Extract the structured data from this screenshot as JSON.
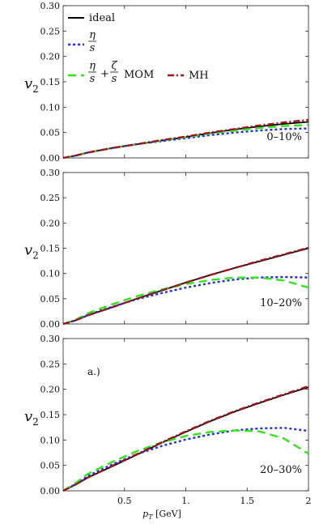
{
  "chart_data": {
    "type": "line",
    "xlabel_main": "p",
    "xlabel_sub": "T",
    "xlabel_unit": " [GeV]",
    "xlim": [
      0,
      2
    ],
    "x_ticks": [
      0.5,
      1.0,
      1.5,
      2.0
    ],
    "x_tick_labels": [
      "0.5",
      "1.",
      "1.5",
      "2"
    ],
    "ylabel_main": "v",
    "ylabel_sub": "2",
    "ylim": [
      0,
      0.3
    ],
    "y_ticks": [
      0.0,
      0.05,
      0.1,
      0.15,
      0.2,
      0.25,
      0.3
    ],
    "y_tick_labels": [
      "0.00",
      "0.05",
      "0.10",
      "0.15",
      "0.20",
      "0.25",
      "0.30"
    ],
    "legend": {
      "ideal": "ideal",
      "eta_num": "η",
      "s_den": "s",
      "plus": "+",
      "zeta_num": "ζ",
      "mom": "MOM",
      "mh": "MH"
    },
    "series_colors": {
      "ideal": "#000000",
      "eta_s": "#1f2ee8",
      "mom": "#33e51c",
      "mh": "#a0141c"
    },
    "panels": [
      {
        "label": "0–10%",
        "annotation": "",
        "series": {
          "ideal": [
            [
              0,
              0
            ],
            [
              0.1,
              0.0045
            ],
            [
              0.2,
              0.0105
            ],
            [
              0.4,
              0.0195
            ],
            [
              0.6,
              0.027
            ],
            [
              0.8,
              0.034
            ],
            [
              1.0,
              0.041
            ],
            [
              1.2,
              0.049
            ],
            [
              1.4,
              0.056
            ],
            [
              1.6,
              0.062
            ],
            [
              1.8,
              0.067
            ],
            [
              2.0,
              0.071
            ]
          ],
          "eta_s": [
            [
              0,
              0
            ],
            [
              0.1,
              0.0045
            ],
            [
              0.2,
              0.0105
            ],
            [
              0.4,
              0.0195
            ],
            [
              0.6,
              0.027
            ],
            [
              0.8,
              0.033
            ],
            [
              1.0,
              0.039
            ],
            [
              1.2,
              0.045
            ],
            [
              1.4,
              0.05
            ],
            [
              1.6,
              0.054
            ],
            [
              1.8,
              0.057
            ],
            [
              2.0,
              0.058
            ]
          ],
          "mom": [
            [
              0,
              0
            ],
            [
              0.1,
              0.0045
            ],
            [
              0.2,
              0.0105
            ],
            [
              0.4,
              0.0195
            ],
            [
              0.6,
              0.027
            ],
            [
              0.8,
              0.034
            ],
            [
              1.0,
              0.041
            ],
            [
              1.2,
              0.048
            ],
            [
              1.4,
              0.054
            ],
            [
              1.6,
              0.059
            ],
            [
              1.8,
              0.063
            ],
            [
              2.0,
              0.065
            ]
          ],
          "mh": [
            [
              0,
              0
            ],
            [
              0.1,
              0.0045
            ],
            [
              0.2,
              0.0105
            ],
            [
              0.4,
              0.0195
            ],
            [
              0.6,
              0.027
            ],
            [
              0.8,
              0.035
            ],
            [
              1.0,
              0.042
            ],
            [
              1.2,
              0.05
            ],
            [
              1.4,
              0.057
            ],
            [
              1.6,
              0.064
            ],
            [
              1.8,
              0.07
            ],
            [
              2.0,
              0.075
            ]
          ]
        }
      },
      {
        "label": "10–20%",
        "annotation": "",
        "series": {
          "ideal": [
            [
              0,
              0
            ],
            [
              0.1,
              0.007
            ],
            [
              0.2,
              0.017
            ],
            [
              0.4,
              0.033
            ],
            [
              0.6,
              0.05
            ],
            [
              0.8,
              0.066
            ],
            [
              1.0,
              0.082
            ],
            [
              1.2,
              0.097
            ],
            [
              1.4,
              0.111
            ],
            [
              1.6,
              0.124
            ],
            [
              1.8,
              0.137
            ],
            [
              2.0,
              0.15
            ]
          ],
          "eta_s": [
            [
              0,
              0
            ],
            [
              0.1,
              0.007
            ],
            [
              0.2,
              0.018
            ],
            [
              0.4,
              0.034
            ],
            [
              0.6,
              0.049
            ],
            [
              0.8,
              0.061
            ],
            [
              1.0,
              0.072
            ],
            [
              1.2,
              0.081
            ],
            [
              1.4,
              0.088
            ],
            [
              1.6,
              0.092
            ],
            [
              1.8,
              0.093
            ],
            [
              2.0,
              0.092
            ]
          ],
          "mom": [
            [
              0,
              0
            ],
            [
              0.1,
              0.008
            ],
            [
              0.2,
              0.021
            ],
            [
              0.4,
              0.039
            ],
            [
              0.6,
              0.055
            ],
            [
              0.8,
              0.068
            ],
            [
              1.0,
              0.079
            ],
            [
              1.2,
              0.087
            ],
            [
              1.4,
              0.092
            ],
            [
              1.6,
              0.092
            ],
            [
              1.8,
              0.086
            ],
            [
              2.0,
              0.072
            ]
          ],
          "mh": [
            [
              0,
              0
            ],
            [
              0.1,
              0.007
            ],
            [
              0.2,
              0.017
            ],
            [
              0.4,
              0.033
            ],
            [
              0.6,
              0.05
            ],
            [
              0.8,
              0.066
            ],
            [
              1.0,
              0.082
            ],
            [
              1.2,
              0.097
            ],
            [
              1.4,
              0.111
            ],
            [
              1.6,
              0.125
            ],
            [
              1.8,
              0.138
            ],
            [
              2.0,
              0.151
            ]
          ]
        }
      },
      {
        "label": "20–30%",
        "annotation": "a.)",
        "series": {
          "ideal": [
            [
              0,
              0
            ],
            [
              0.1,
              0.012
            ],
            [
              0.2,
              0.026
            ],
            [
              0.4,
              0.048
            ],
            [
              0.6,
              0.071
            ],
            [
              0.8,
              0.094
            ],
            [
              1.0,
              0.116
            ],
            [
              1.2,
              0.137
            ],
            [
              1.4,
              0.156
            ],
            [
              1.6,
              0.173
            ],
            [
              1.8,
              0.189
            ],
            [
              2.0,
              0.204
            ]
          ],
          "eta_s": [
            [
              0,
              0
            ],
            [
              0.1,
              0.013
            ],
            [
              0.2,
              0.029
            ],
            [
              0.4,
              0.052
            ],
            [
              0.6,
              0.072
            ],
            [
              0.8,
              0.088
            ],
            [
              1.0,
              0.101
            ],
            [
              1.2,
              0.111
            ],
            [
              1.4,
              0.119
            ],
            [
              1.6,
              0.123
            ],
            [
              1.8,
              0.124
            ],
            [
              2.0,
              0.118
            ]
          ],
          "mom": [
            [
              0,
              0
            ],
            [
              0.1,
              0.015
            ],
            [
              0.2,
              0.033
            ],
            [
              0.4,
              0.057
            ],
            [
              0.6,
              0.078
            ],
            [
              0.8,
              0.095
            ],
            [
              1.0,
              0.108
            ],
            [
              1.2,
              0.116
            ],
            [
              1.4,
              0.119
            ],
            [
              1.6,
              0.117
            ],
            [
              1.8,
              0.103
            ],
            [
              2.0,
              0.073
            ]
          ],
          "mh": [
            [
              0,
              0
            ],
            [
              0.1,
              0.012
            ],
            [
              0.2,
              0.026
            ],
            [
              0.4,
              0.049
            ],
            [
              0.6,
              0.072
            ],
            [
              0.8,
              0.095
            ],
            [
              1.0,
              0.117
            ],
            [
              1.2,
              0.138
            ],
            [
              1.4,
              0.157
            ],
            [
              1.6,
              0.174
            ],
            [
              1.8,
              0.19
            ],
            [
              2.0,
              0.206
            ]
          ]
        }
      }
    ]
  }
}
